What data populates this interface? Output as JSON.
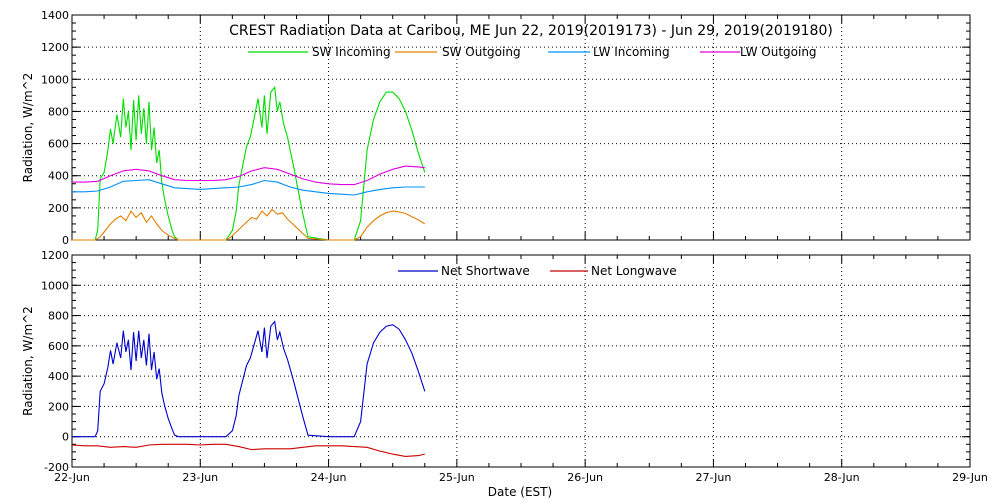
{
  "chart_data": [
    {
      "type": "line",
      "title": "CREST Radiation Data at Caribou, ME   Jun 22, 2019(2019173) - Jun 29, 2019(2019180)",
      "ylabel": "Radiation, W/m^2",
      "xlim": [
        "22-Jun",
        "29-Jun"
      ],
      "ylim": [
        0,
        1400
      ],
      "yticks": [
        0,
        200,
        400,
        600,
        800,
        1000,
        1200,
        1400
      ],
      "grid": true,
      "legend": "top",
      "series": [
        {
          "name": "SW Incoming",
          "color": "#00dd00",
          "x": [
            0.0,
            0.18,
            0.2,
            0.22,
            0.25,
            0.28,
            0.3,
            0.32,
            0.35,
            0.38,
            0.4,
            0.42,
            0.44,
            0.46,
            0.48,
            0.5,
            0.52,
            0.54,
            0.56,
            0.58,
            0.6,
            0.62,
            0.64,
            0.66,
            0.68,
            0.7,
            0.72,
            0.75,
            0.78,
            0.8,
            0.83,
            1.0,
            1.2,
            1.25,
            1.28,
            1.3,
            1.33,
            1.36,
            1.39,
            1.42,
            1.45,
            1.48,
            1.5,
            1.52,
            1.55,
            1.58,
            1.6,
            1.62,
            1.65,
            1.68,
            1.7,
            1.73,
            1.76,
            1.8,
            1.84,
            2.0,
            2.2,
            2.25,
            2.3,
            2.35,
            2.4,
            2.45,
            2.5,
            2.55,
            2.6,
            2.65,
            2.7,
            2.75
          ],
          "y": [
            0,
            0,
            60,
            380,
            420,
            560,
            690,
            600,
            780,
            640,
            880,
            700,
            800,
            560,
            870,
            620,
            900,
            660,
            820,
            600,
            860,
            560,
            700,
            480,
            560,
            360,
            260,
            150,
            60,
            20,
            0,
            0,
            0,
            60,
            180,
            340,
            460,
            580,
            640,
            760,
            880,
            700,
            900,
            660,
            920,
            950,
            800,
            860,
            720,
            640,
            560,
            450,
            320,
            160,
            20,
            0,
            0,
            120,
            560,
            750,
            860,
            920,
            920,
            880,
            800,
            680,
            540,
            420
          ]
        },
        {
          "name": "SW Outgoing",
          "color": "#e08000",
          "x": [
            0.0,
            0.18,
            0.22,
            0.26,
            0.3,
            0.34,
            0.38,
            0.42,
            0.46,
            0.5,
            0.54,
            0.58,
            0.62,
            0.66,
            0.7,
            0.75,
            0.8,
            0.83,
            1.0,
            1.2,
            1.24,
            1.28,
            1.32,
            1.36,
            1.4,
            1.44,
            1.48,
            1.52,
            1.56,
            1.6,
            1.64,
            1.68,
            1.72,
            1.76,
            1.8,
            1.84,
            2.0,
            2.2,
            2.25,
            2.3,
            2.35,
            2.4,
            2.45,
            2.5,
            2.55,
            2.6,
            2.65,
            2.7,
            2.75
          ],
          "y": [
            0,
            0,
            20,
            60,
            100,
            130,
            150,
            120,
            180,
            140,
            170,
            110,
            150,
            100,
            60,
            30,
            10,
            0,
            0,
            0,
            20,
            50,
            80,
            110,
            140,
            130,
            180,
            150,
            190,
            160,
            170,
            130,
            100,
            70,
            40,
            10,
            0,
            0,
            20,
            80,
            120,
            150,
            170,
            180,
            175,
            165,
            145,
            125,
            100
          ]
        },
        {
          "name": "LW Incoming",
          "color": "#0090ff",
          "x": [
            0.0,
            0.1,
            0.2,
            0.3,
            0.4,
            0.5,
            0.6,
            0.7,
            0.8,
            0.9,
            1.0,
            1.1,
            1.2,
            1.3,
            1.4,
            1.5,
            1.6,
            1.7,
            1.8,
            1.9,
            2.0,
            2.1,
            2.2,
            2.3,
            2.4,
            2.5,
            2.6,
            2.7,
            2.75
          ],
          "y": [
            300,
            300,
            305,
            330,
            365,
            370,
            375,
            350,
            325,
            320,
            315,
            320,
            325,
            330,
            345,
            370,
            360,
            330,
            310,
            300,
            290,
            285,
            280,
            300,
            315,
            325,
            330,
            330,
            330
          ]
        },
        {
          "name": "LW Outgoing",
          "color": "#e000e0",
          "x": [
            0.0,
            0.1,
            0.2,
            0.3,
            0.4,
            0.5,
            0.6,
            0.7,
            0.8,
            0.9,
            1.0,
            1.1,
            1.2,
            1.3,
            1.4,
            1.5,
            1.6,
            1.7,
            1.8,
            1.9,
            2.0,
            2.1,
            2.2,
            2.3,
            2.4,
            2.5,
            2.6,
            2.7,
            2.75
          ],
          "y": [
            360,
            360,
            365,
            400,
            430,
            440,
            430,
            400,
            375,
            370,
            370,
            370,
            375,
            395,
            430,
            450,
            440,
            410,
            380,
            360,
            350,
            345,
            345,
            370,
            410,
            440,
            460,
            455,
            450
          ]
        }
      ]
    },
    {
      "type": "line",
      "xlabel": "Date (EST)",
      "ylabel": "Radiation, W/m^2",
      "xlim": [
        "22-Jun",
        "29-Jun"
      ],
      "ylim": [
        -200,
        1200
      ],
      "yticks": [
        -200,
        0,
        200,
        400,
        600,
        800,
        1000,
        1200
      ],
      "xticks": [
        "22-Jun",
        "23-Jun",
        "24-Jun",
        "25-Jun",
        "26-Jun",
        "27-Jun",
        "28-Jun",
        "29-Jun"
      ],
      "grid": true,
      "legend": "top",
      "series": [
        {
          "name": "Net Shortwave",
          "color": "#0000cc",
          "x": [
            0.0,
            0.18,
            0.2,
            0.22,
            0.25,
            0.28,
            0.3,
            0.32,
            0.35,
            0.38,
            0.4,
            0.42,
            0.44,
            0.46,
            0.48,
            0.5,
            0.52,
            0.54,
            0.56,
            0.58,
            0.6,
            0.62,
            0.64,
            0.66,
            0.68,
            0.7,
            0.72,
            0.75,
            0.78,
            0.8,
            0.83,
            1.0,
            1.2,
            1.25,
            1.28,
            1.3,
            1.33,
            1.36,
            1.39,
            1.42,
            1.45,
            1.48,
            1.5,
            1.52,
            1.55,
            1.58,
            1.6,
            1.62,
            1.65,
            1.68,
            1.7,
            1.73,
            1.76,
            1.8,
            1.84,
            2.0,
            2.2,
            2.25,
            2.3,
            2.35,
            2.4,
            2.45,
            2.5,
            2.55,
            2.6,
            2.65,
            2.7,
            2.75
          ],
          "y": [
            0,
            0,
            40,
            300,
            350,
            460,
            570,
            480,
            620,
            520,
            700,
            560,
            640,
            440,
            690,
            500,
            700,
            520,
            640,
            470,
            680,
            440,
            560,
            380,
            450,
            290,
            210,
            120,
            50,
            10,
            0,
            0,
            0,
            40,
            140,
            270,
            370,
            470,
            520,
            610,
            700,
            560,
            720,
            520,
            730,
            760,
            640,
            690,
            580,
            510,
            450,
            360,
            260,
            130,
            10,
            0,
            0,
            100,
            480,
            620,
            690,
            730,
            740,
            710,
            640,
            550,
            430,
            300
          ]
        },
        {
          "name": "Net Longwave",
          "color": "#cc0000",
          "x": [
            0.0,
            0.1,
            0.2,
            0.3,
            0.4,
            0.5,
            0.6,
            0.7,
            0.8,
            0.9,
            1.0,
            1.1,
            1.2,
            1.3,
            1.4,
            1.5,
            1.6,
            1.7,
            1.8,
            1.9,
            2.0,
            2.1,
            2.2,
            2.3,
            2.4,
            2.5,
            2.6,
            2.7,
            2.75
          ],
          "y": [
            -55,
            -60,
            -60,
            -70,
            -65,
            -70,
            -55,
            -50,
            -50,
            -50,
            -55,
            -50,
            -50,
            -65,
            -85,
            -80,
            -80,
            -80,
            -70,
            -60,
            -60,
            -60,
            -65,
            -70,
            -95,
            -115,
            -130,
            -125,
            -115
          ]
        }
      ]
    }
  ]
}
